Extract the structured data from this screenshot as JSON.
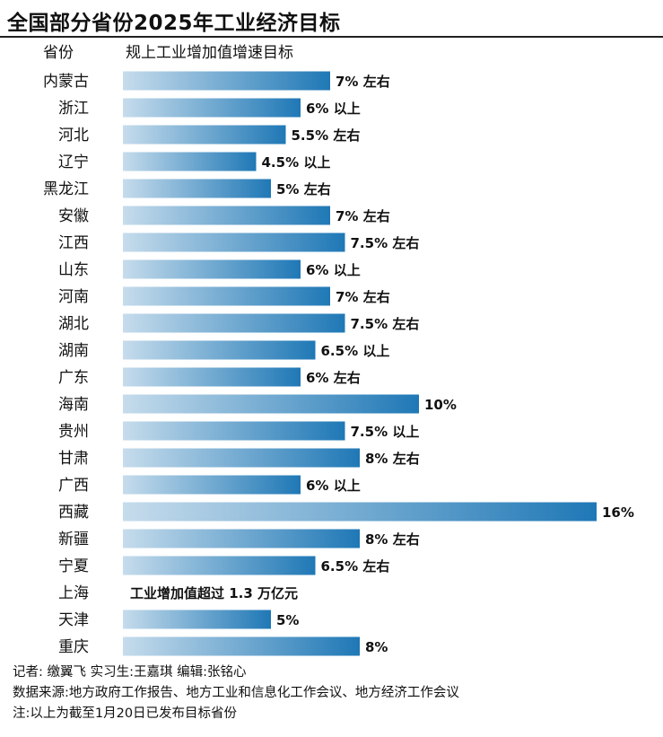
{
  "chart_data": {
    "type": "bar",
    "orientation": "horizontal",
    "title": "全国部分省份2025年工业经济目标",
    "header_category": "省份",
    "header_value": "规上工业增加值增速目标",
    "categories": [
      "内蒙古",
      "浙江",
      "河北",
      "辽宁",
      "黑龙江",
      "安徽",
      "江西",
      "山东",
      "河南",
      "湖北",
      "湖南",
      "广东",
      "海南",
      "贵州",
      "甘肃",
      "广西",
      "西藏",
      "新疆",
      "宁夏",
      "上海",
      "天津",
      "重庆"
    ],
    "values": [
      7,
      6,
      5.5,
      4.5,
      5,
      7,
      7.5,
      6,
      7,
      7.5,
      6.5,
      6,
      10,
      7.5,
      8,
      6,
      16,
      8,
      6.5,
      null,
      5,
      8
    ],
    "labels": [
      "7% 左右",
      "6% 以上",
      "5.5% 左右",
      "4.5% 以上",
      "5% 左右",
      "7% 左右",
      "7.5% 左右",
      "6% 以上",
      "7% 左右",
      "7.5% 左右",
      "6.5% 以上",
      "6% 左右",
      "10%",
      "7.5% 以上",
      "8% 左右",
      "6% 以上",
      "16%",
      "8% 左右",
      "6.5% 左右",
      "工业增加值超过 1.3 万亿元",
      "5%",
      "8%"
    ],
    "bar_gradient": [
      "#c6dcec",
      "#1f78b6"
    ]
  },
  "footer": {
    "reporter": "记者: 缴翼飞  实习生:王嘉琪  编辑:张铭心",
    "source": "数据来源:地方政府工作报告、地方工业和信息化工作会议、地方经济工作会议",
    "note": "注:以上为截至1月20日已发布目标省份"
  }
}
